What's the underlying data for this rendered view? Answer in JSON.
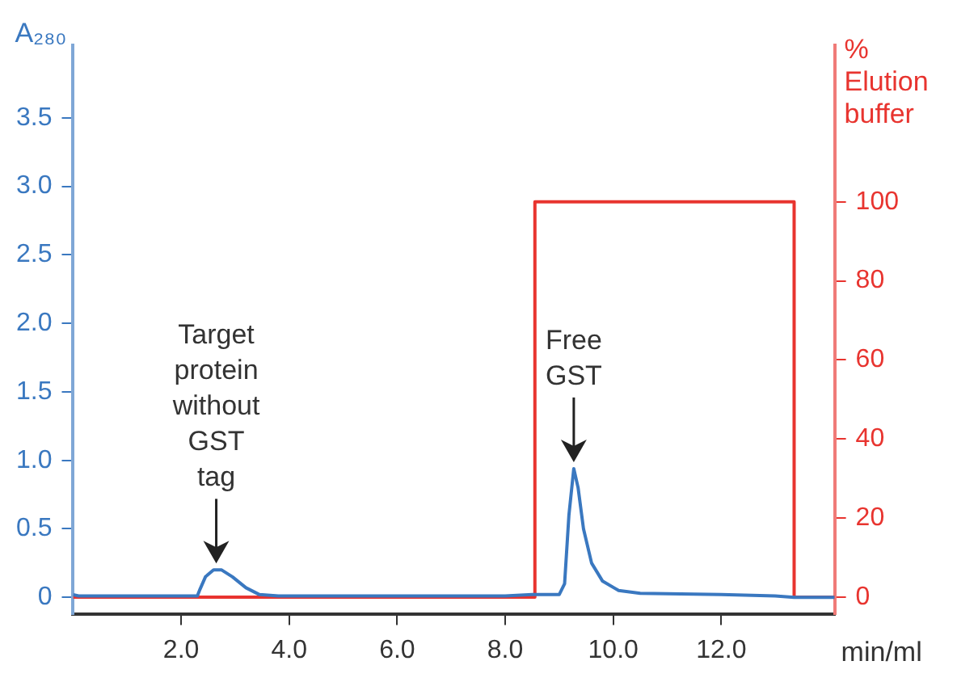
{
  "chart_data": {
    "type": "line",
    "xlabel": "min/ml",
    "ylabel": "A₂₈₀",
    "y2label": "% Elution buffer",
    "xlim": [
      0,
      14.1
    ],
    "xticks": [
      {
        "value": 2,
        "label": "2.0"
      },
      {
        "value": 4,
        "label": "4.0"
      },
      {
        "value": 6,
        "label": "6.0"
      },
      {
        "value": 8,
        "label": "8.0"
      },
      {
        "value": 10,
        "label": "10.0"
      },
      {
        "value": 12,
        "label": "12.0"
      }
    ],
    "ylim": [
      -0.12,
      4.03
    ],
    "yticks": [
      0,
      0.5,
      {
        "value": 1,
        "label": "1.0"
      },
      1.5,
      {
        "value": 2,
        "label": "2.0"
      },
      2.5,
      {
        "value": 3,
        "label": "3.0"
      },
      3.5
    ],
    "y2lim": [
      -4.2,
      139.6
    ],
    "y2ticks": [
      0,
      20,
      40,
      60,
      80,
      100
    ],
    "grid": false,
    "legend": false,
    "marker": "none",
    "series": [
      {
        "color": "#3a78c0",
        "axis": "y",
        "x": [
          0,
          0.1,
          2.3,
          2.35,
          2.45,
          2.6,
          2.75,
          2.95,
          3.2,
          3.45,
          3.8,
          8.0,
          8.5,
          9.0,
          9.1,
          9.18,
          9.27,
          9.35,
          9.45,
          9.6,
          9.8,
          10.1,
          10.5,
          12.0,
          13.0,
          13.35,
          14.1
        ],
        "values": [
          0.02,
          0.01,
          0.01,
          0.06,
          0.15,
          0.2,
          0.2,
          0.15,
          0.07,
          0.02,
          0.01,
          0.01,
          0.02,
          0.02,
          0.1,
          0.6,
          0.94,
          0.8,
          0.5,
          0.25,
          0.12,
          0.05,
          0.03,
          0.02,
          0.01,
          0,
          0
        ]
      },
      {
        "type": "step",
        "color": "#e8342f",
        "axis": "y2",
        "x": [
          0,
          8.55,
          13.35,
          14.1
        ],
        "values": [
          0,
          100,
          0,
          0
        ]
      }
    ],
    "annotations": [
      {
        "text": "Target protein without GST tag",
        "x": 2.65,
        "y": 0.2
      },
      {
        "text": "Free GST",
        "x": 9.27,
        "y": 0.94
      }
    ]
  }
}
